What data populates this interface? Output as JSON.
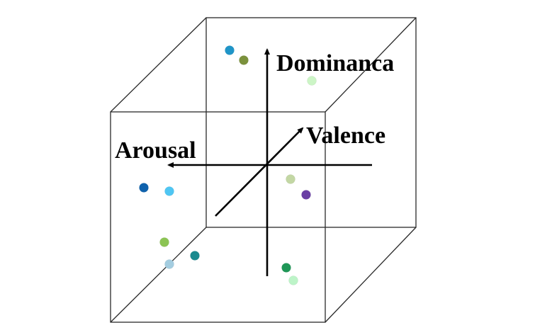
{
  "axes": {
    "dominance_label": "Dominanca",
    "valence_label": "Valence",
    "arousal_label": "Arousal"
  },
  "points": [
    {
      "color": "#1f95c8"
    },
    {
      "color": "#7b913c"
    },
    {
      "color": "#ccf5c6"
    },
    {
      "color": "#0f62ad"
    },
    {
      "color": "#4fc6f3"
    },
    {
      "color": "#c3d7a4"
    },
    {
      "color": "#6a3fa4"
    },
    {
      "color": "#8cc454"
    },
    {
      "color": "#1b8a8f"
    },
    {
      "color": "#a4cde0"
    },
    {
      "color": "#1f9757"
    },
    {
      "color": "#bdf4c8"
    }
  ]
}
